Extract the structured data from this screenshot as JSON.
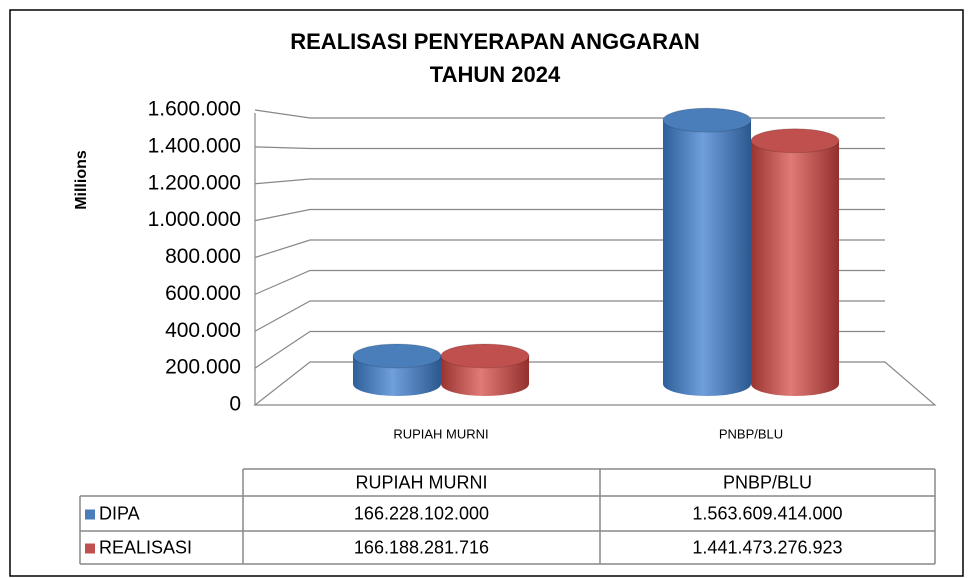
{
  "chart_data": {
    "type": "bar3d",
    "title": [
      "REALISASI PENYERAPAN  ANGGARAN",
      "TAHUN 2024"
    ],
    "y_label": "Millions",
    "categories": [
      "RUPIAH MURNI",
      "PNBP/BLU"
    ],
    "series": [
      {
        "name": "DIPA",
        "color": "#4a7ebb",
        "values": [
          166228.102,
          1563609.414
        ],
        "value_labels": [
          "166.228.102.000",
          "1.563.609.414.000"
        ]
      },
      {
        "name": "REALISASI",
        "color": "#c0504d",
        "values": [
          166188.281716,
          1441473.276923
        ],
        "value_labels": [
          "166.188.281.716",
          "1.441.473.276.923"
        ]
      }
    ],
    "ylim": [
      0,
      1600000
    ],
    "yticks": [
      0,
      {
        "value": 200000,
        "label": "200.000"
      },
      {
        "value": 400000,
        "label": "400.000"
      },
      {
        "value": 600000,
        "label": "600.000"
      },
      {
        "value": 800000,
        "label": "800.000"
      },
      {
        "value": 1000000,
        "label": "1.000.000"
      },
      {
        "value": 1200000,
        "label": "1.200.000"
      },
      {
        "value": 1400000,
        "label": "1.400.000"
      },
      {
        "value": 1600000,
        "label": "1.600.000"
      }
    ],
    "grid": true,
    "data_table": true
  }
}
